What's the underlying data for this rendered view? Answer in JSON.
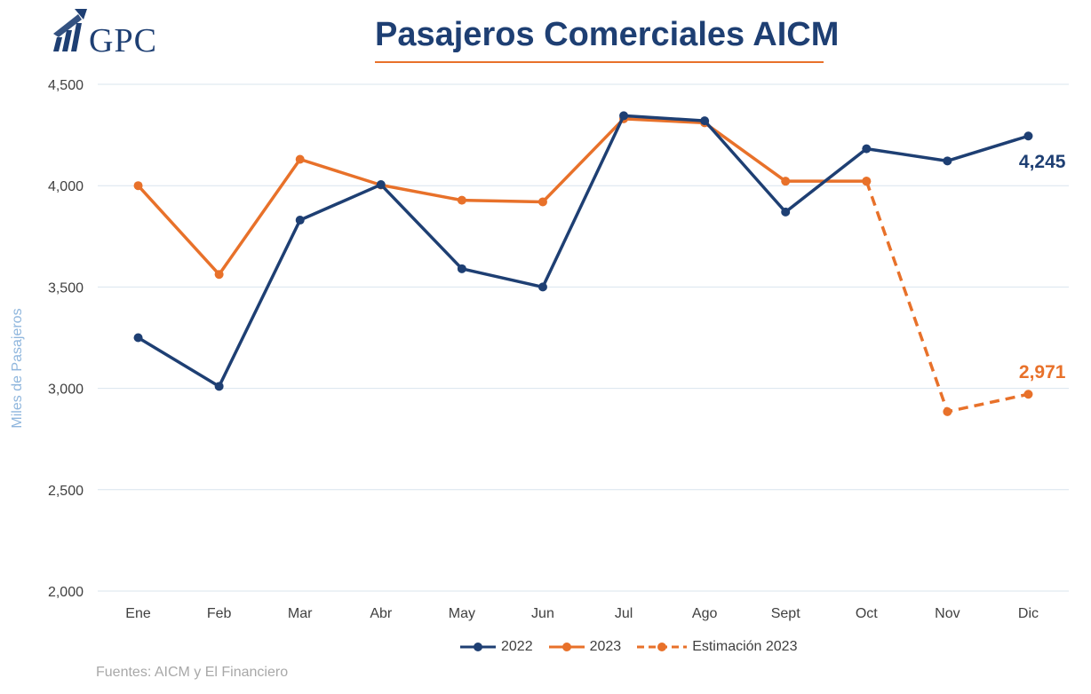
{
  "header": {
    "logo_text": "GPC",
    "title": "Pasajeros Comerciales AICM"
  },
  "source_note": "Fuentes: AICM y El Financiero",
  "colors": {
    "series_2022": "#1e3f73",
    "series_2023": "#e8712a",
    "gridline": "#d9e4ee",
    "axis_text": "#404040",
    "ylabel": "#8fb6dd"
  },
  "chart_data": {
    "type": "line",
    "title": "Pasajeros Comerciales AICM",
    "ylabel": "Miles de Pasajeros",
    "xlabel": "",
    "categories": [
      "Ene",
      "Feb",
      "Mar",
      "Abr",
      "May",
      "Jun",
      "Jul",
      "Ago",
      "Sept",
      "Oct",
      "Nov",
      "Dic"
    ],
    "ylim": [
      2000,
      4500
    ],
    "yticks": [
      2000,
      2500,
      3000,
      3500,
      4000,
      4500
    ],
    "ytick_labels": [
      "2,000",
      "2,500",
      "3,000",
      "3,500",
      "4,000",
      "4,500"
    ],
    "grid": true,
    "legend_position": "bottom",
    "series": [
      {
        "name": "2022",
        "color": "#1e3f73",
        "style": "solid",
        "values": [
          3250,
          3010,
          3830,
          4005,
          3590,
          3500,
          4345,
          4320,
          3870,
          4182,
          4122,
          4245
        ]
      },
      {
        "name": "2023",
        "color": "#e8712a",
        "style": "solid",
        "values": [
          4000,
          3562,
          4130,
          4003,
          3928,
          3920,
          4330,
          4310,
          4022,
          4022,
          null,
          null
        ]
      },
      {
        "name": "Estimación 2023",
        "color": "#e8712a",
        "style": "dashed",
        "values": [
          null,
          null,
          null,
          null,
          null,
          null,
          null,
          null,
          null,
          4022,
          2885,
          2971
        ]
      }
    ],
    "annotations": [
      {
        "series": "2022",
        "category": "Dic",
        "label": "4,245"
      },
      {
        "series": "Estimación 2023",
        "category": "Dic",
        "label": "2,971"
      }
    ]
  }
}
